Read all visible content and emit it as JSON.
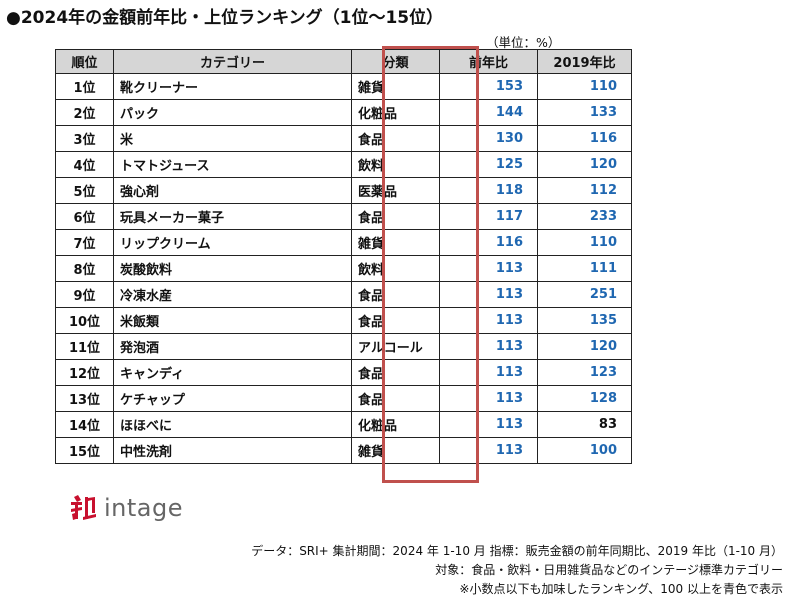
{
  "title": "●2024年の金額前年比・上位ランキング（1位～15位）",
  "unit": "（単位：%）",
  "table": {
    "headers": [
      "順位",
      "カテゴリー",
      "分類",
      "前年比",
      "2019年比"
    ],
    "rows": [
      {
        "rank": "1位",
        "category": "靴クリーナー",
        "class": "雑貨",
        "yoy": "153",
        "vs2019": "110"
      },
      {
        "rank": "2位",
        "category": "パック",
        "class": "化粧品",
        "yoy": "144",
        "vs2019": "133"
      },
      {
        "rank": "3位",
        "category": "米",
        "class": "食品",
        "yoy": "130",
        "vs2019": "116"
      },
      {
        "rank": "4位",
        "category": "トマトジュース",
        "class": "飲料",
        "yoy": "125",
        "vs2019": "120"
      },
      {
        "rank": "5位",
        "category": "強心剤",
        "class": "医薬品",
        "yoy": "118",
        "vs2019": "112"
      },
      {
        "rank": "6位",
        "category": "玩具メーカー菓子",
        "class": "食品",
        "yoy": "117",
        "vs2019": "233"
      },
      {
        "rank": "7位",
        "category": "リップクリーム",
        "class": "雑貨",
        "yoy": "116",
        "vs2019": "110"
      },
      {
        "rank": "8位",
        "category": "炭酸飲料",
        "class": "飲料",
        "yoy": "113",
        "vs2019": "111"
      },
      {
        "rank": "9位",
        "category": "冷凍水産",
        "class": "食品",
        "yoy": "113",
        "vs2019": "251"
      },
      {
        "rank": "10位",
        "category": "米飯類",
        "class": "食品",
        "yoy": "113",
        "vs2019": "135"
      },
      {
        "rank": "11位",
        "category": "発泡酒",
        "class": "アルコール",
        "yoy": "113",
        "vs2019": "120"
      },
      {
        "rank": "12位",
        "category": "キャンディ",
        "class": "食品",
        "yoy": "113",
        "vs2019": "123"
      },
      {
        "rank": "13位",
        "category": "ケチャップ",
        "class": "食品",
        "yoy": "113",
        "vs2019": "128"
      },
      {
        "rank": "14位",
        "category": "ほほべに",
        "class": "化粧品",
        "yoy": "113",
        "vs2019": "83"
      },
      {
        "rank": "15位",
        "category": "中性洗剤",
        "class": "雑貨",
        "yoy": "113",
        "vs2019": "100"
      }
    ]
  },
  "logo": {
    "text": "intage",
    "icon": "intage-logo-icon"
  },
  "notes": [
    "データ：SRI+ 集計期間：2024 年 1-10 月 指標：販売金額の前年同期比、2019 年比（1-10 月）",
    "対象：食品・飲料・日用雑貨品などのインテージ標準カテゴリー",
    "※小数点以下も加味したランキング、100 以上を青色で表示"
  ],
  "colors": {
    "above_100": "#1f67b1",
    "highlight": "#c0504d",
    "header_bg": "#d6d6d6"
  }
}
